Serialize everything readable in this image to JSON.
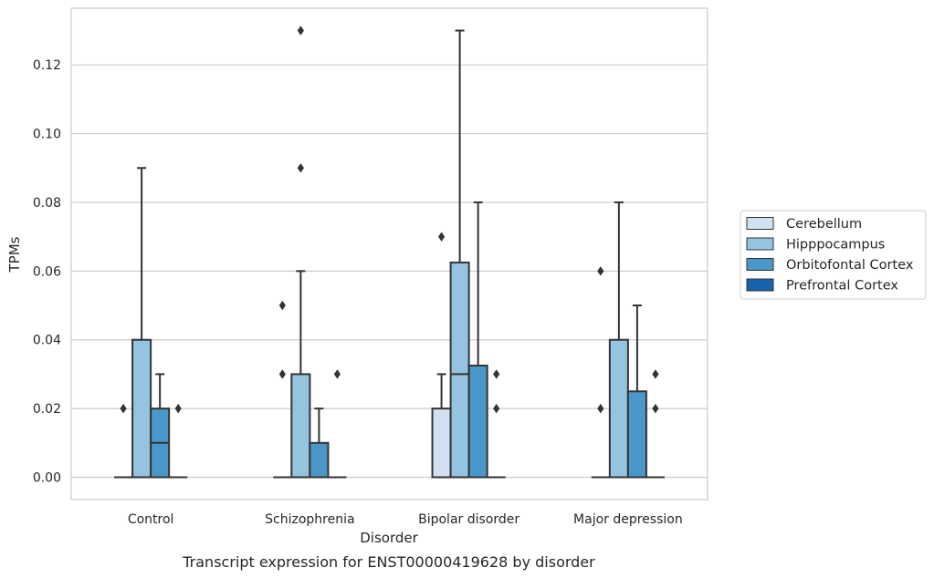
{
  "caption": "Transcript expression for ENST00000419628 by disorder",
  "chart_data": {
    "type": "box",
    "title": "",
    "xlabel": "Disorder",
    "ylabel": "TPMs",
    "categories": [
      "Control",
      "Schizophrenia",
      "Bipolar disorder",
      "Major depression"
    ],
    "ylim": [
      -0.0065,
      0.1365
    ],
    "yticks": [
      0.0,
      0.02,
      0.04,
      0.06,
      0.08,
      0.1,
      0.12
    ],
    "ytick_labels": [
      "0.00",
      "0.02",
      "0.04",
      "0.06",
      "0.08",
      "0.10",
      "0.12"
    ],
    "grid": "horizontal",
    "legend_position": "right",
    "series": [
      {
        "name": "Cerebellum",
        "color": "#d0e1f2",
        "boxes": [
          {
            "q1": 0,
            "median": 0,
            "q3": 0,
            "whisker_low": 0,
            "whisker_high": 0,
            "outliers": [
              0.02
            ]
          },
          {
            "q1": 0,
            "median": 0,
            "q3": 0,
            "whisker_low": 0,
            "whisker_high": 0,
            "outliers": [
              0.03,
              0.05
            ]
          },
          {
            "q1": 0,
            "median": 0,
            "q3": 0.02,
            "whisker_low": 0,
            "whisker_high": 0.03,
            "outliers": [
              0.07
            ]
          },
          {
            "q1": 0,
            "median": 0,
            "q3": 0,
            "whisker_low": 0,
            "whisker_high": 0,
            "outliers": [
              0.02,
              0.06
            ]
          }
        ]
      },
      {
        "name": "Hipppocampus",
        "color": "#94c4df",
        "boxes": [
          {
            "q1": 0,
            "median": 0,
            "q3": 0.04,
            "whisker_low": 0,
            "whisker_high": 0.09,
            "outliers": []
          },
          {
            "q1": 0,
            "median": 0,
            "q3": 0.03,
            "whisker_low": 0,
            "whisker_high": 0.06,
            "outliers": [
              0.09,
              0.13
            ]
          },
          {
            "q1": 0,
            "median": 0.03,
            "q3": 0.0625,
            "whisker_low": 0,
            "whisker_high": 0.13,
            "outliers": []
          },
          {
            "q1": 0,
            "median": 0,
            "q3": 0.04,
            "whisker_low": 0,
            "whisker_high": 0.08,
            "outliers": []
          }
        ]
      },
      {
        "name": "Orbitofontal Cortex",
        "color": "#4a98c9",
        "boxes": [
          {
            "q1": 0,
            "median": 0.01,
            "q3": 0.02,
            "whisker_low": 0,
            "whisker_high": 0.03,
            "outliers": []
          },
          {
            "q1": 0,
            "median": 0,
            "q3": 0.01,
            "whisker_low": 0,
            "whisker_high": 0.02,
            "outliers": []
          },
          {
            "q1": 0,
            "median": 0,
            "q3": 0.0325,
            "whisker_low": 0,
            "whisker_high": 0.08,
            "outliers": []
          },
          {
            "q1": 0,
            "median": 0,
            "q3": 0.025,
            "whisker_low": 0,
            "whisker_high": 0.05,
            "outliers": []
          }
        ]
      },
      {
        "name": "Prefrontal Cortex",
        "color": "#1764ab",
        "boxes": [
          {
            "q1": 0,
            "median": 0,
            "q3": 0,
            "whisker_low": 0,
            "whisker_high": 0,
            "outliers": [
              0.02
            ]
          },
          {
            "q1": 0,
            "median": 0,
            "q3": 0,
            "whisker_low": 0,
            "whisker_high": 0,
            "outliers": [
              0.03
            ]
          },
          {
            "q1": 0,
            "median": 0,
            "q3": 0,
            "whisker_low": 0,
            "whisker_high": 0,
            "outliers": [
              0.02,
              0.03
            ]
          },
          {
            "q1": 0,
            "median": 0,
            "q3": 0,
            "whisker_low": 0,
            "whisker_high": 0,
            "outliers": [
              0.02,
              0.03
            ]
          }
        ]
      }
    ]
  }
}
